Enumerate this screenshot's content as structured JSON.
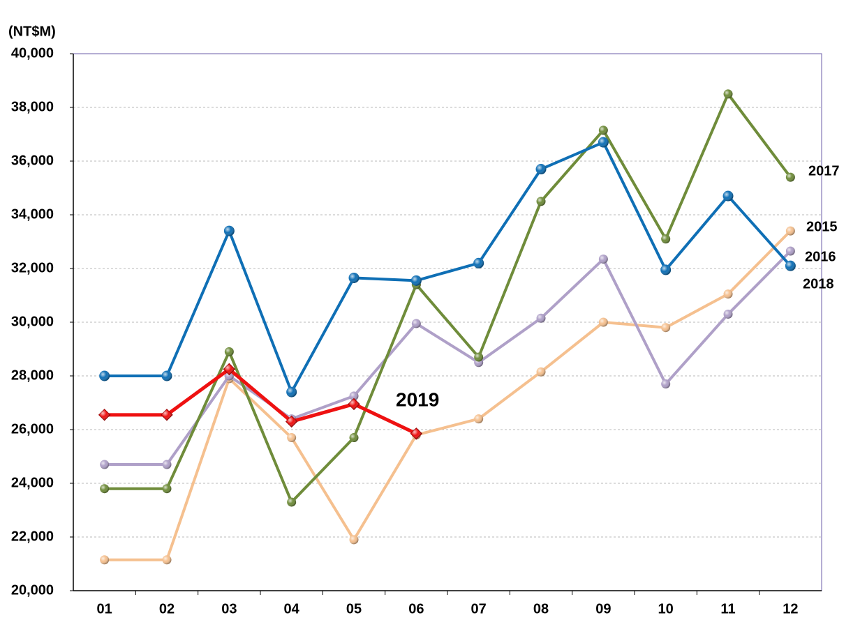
{
  "chart_data": {
    "type": "line",
    "y_label": "(NT$M)",
    "categories": [
      "01",
      "02",
      "03",
      "04",
      "05",
      "06",
      "07",
      "08",
      "09",
      "10",
      "11",
      "12"
    ],
    "series": [
      {
        "name": "2015",
        "color": "#f5c08f",
        "marker": "circle",
        "values": [
          21150,
          21150,
          27900,
          25700,
          21900,
          25800,
          26400,
          28150,
          30000,
          29800,
          31050,
          33400
        ]
      },
      {
        "name": "2016",
        "color": "#afa0c8",
        "marker": "circle",
        "values": [
          24700,
          24700,
          28000,
          26400,
          27250,
          29950,
          28500,
          30150,
          32350,
          27700,
          30300,
          32650
        ]
      },
      {
        "name": "2017",
        "color": "#6f8c3a",
        "marker": "circle",
        "values": [
          23800,
          23800,
          28900,
          23300,
          25700,
          31400,
          28700,
          34500,
          37150,
          33100,
          38500,
          35400
        ]
      },
      {
        "name": "2018",
        "color": "#0f6fb5",
        "marker": "circle",
        "values": [
          28000,
          28000,
          33400,
          27400,
          31650,
          31550,
          32200,
          35700,
          36700,
          31950,
          34700,
          32100
        ]
      },
      {
        "name": "2019",
        "color": "#ee1111",
        "marker": "diamond",
        "values": [
          26550,
          26550,
          28250,
          26300,
          26950,
          25850,
          null,
          null,
          null,
          null,
          null,
          null
        ]
      }
    ],
    "ylim": [
      20000,
      40000
    ],
    "yticks": [
      {
        "value": 20000,
        "label": "20,000"
      },
      {
        "value": 22000,
        "label": "22,000"
      },
      {
        "value": 24000,
        "label": "24,000"
      },
      {
        "value": 26000,
        "label": "26,000"
      },
      {
        "value": 28000,
        "label": "28,000"
      },
      {
        "value": 30000,
        "label": "30,000"
      },
      {
        "value": 32000,
        "label": "32,000"
      },
      {
        "value": 34000,
        "label": "34,000"
      },
      {
        "value": 36000,
        "label": "36,000"
      },
      {
        "value": 38000,
        "label": "38,000"
      },
      {
        "value": 40000,
        "label": "40,000"
      }
    ],
    "grid": true
  }
}
